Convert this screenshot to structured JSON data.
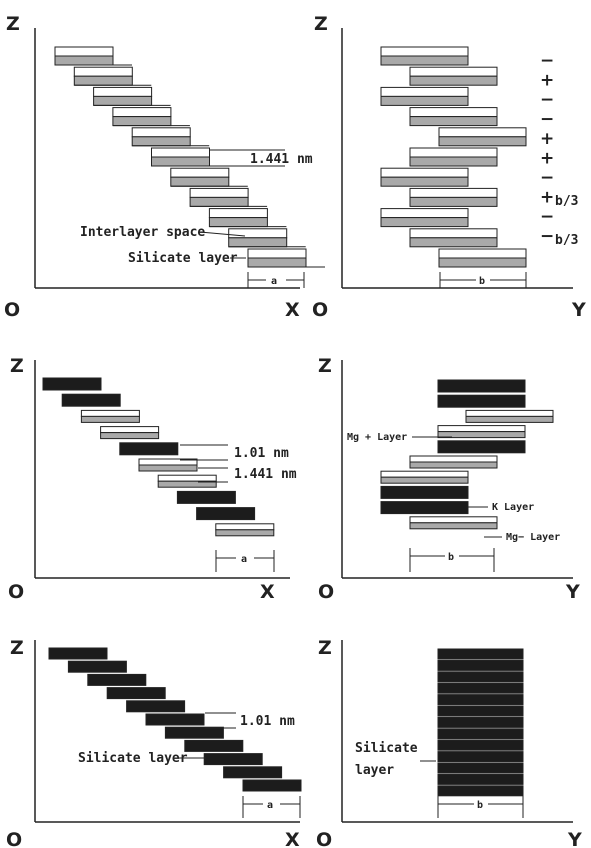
{
  "panels": {
    "p1": {
      "axis_z": "Z",
      "axis_origin": "O",
      "axis_h": "X",
      "spacing_label": "1.441 nm",
      "interlayer_label": "Interlayer space",
      "silicate_label": "Silicate layer",
      "unit_label": "a"
    },
    "p2": {
      "axis_z": "Z",
      "axis_origin": "O",
      "axis_h": "Y",
      "signs": [
        "−",
        "+",
        "−",
        "−",
        "+",
        "+",
        "−",
        "+",
        "−",
        "−"
      ],
      "b3_plus": "b/3",
      "b3_minus": "b/3",
      "unit_label": "b"
    },
    "p3": {
      "axis_z": "Z",
      "axis_origin": "O",
      "axis_h": "X",
      "spacing_label_1": "1.01 nm",
      "spacing_label_2": "1.441 nm",
      "unit_label": "a"
    },
    "p4": {
      "axis_z": "Z",
      "axis_origin": "O",
      "axis_h": "Y",
      "mg_plus_label": "Mg + Layer",
      "k_label": "K Layer",
      "mg_minus_label": "Mg− Layer",
      "unit_label": "b"
    },
    "p5": {
      "axis_z": "Z",
      "axis_origin": "O",
      "axis_h": "X",
      "spacing_label": "1.01 nm",
      "silicate_label": "Silicate layer",
      "unit_label": "a"
    },
    "p6": {
      "axis_z": "Z",
      "axis_origin": "O",
      "axis_h": "Y",
      "silicate_label_1": "Silicate",
      "silicate_label_2": "layer",
      "unit_label": "b"
    }
  },
  "colors": {
    "gray_layer": "#a9a9a9",
    "dark_layer": "#1c1c1c",
    "white_layer": "#ffffff",
    "line": "#222222"
  }
}
